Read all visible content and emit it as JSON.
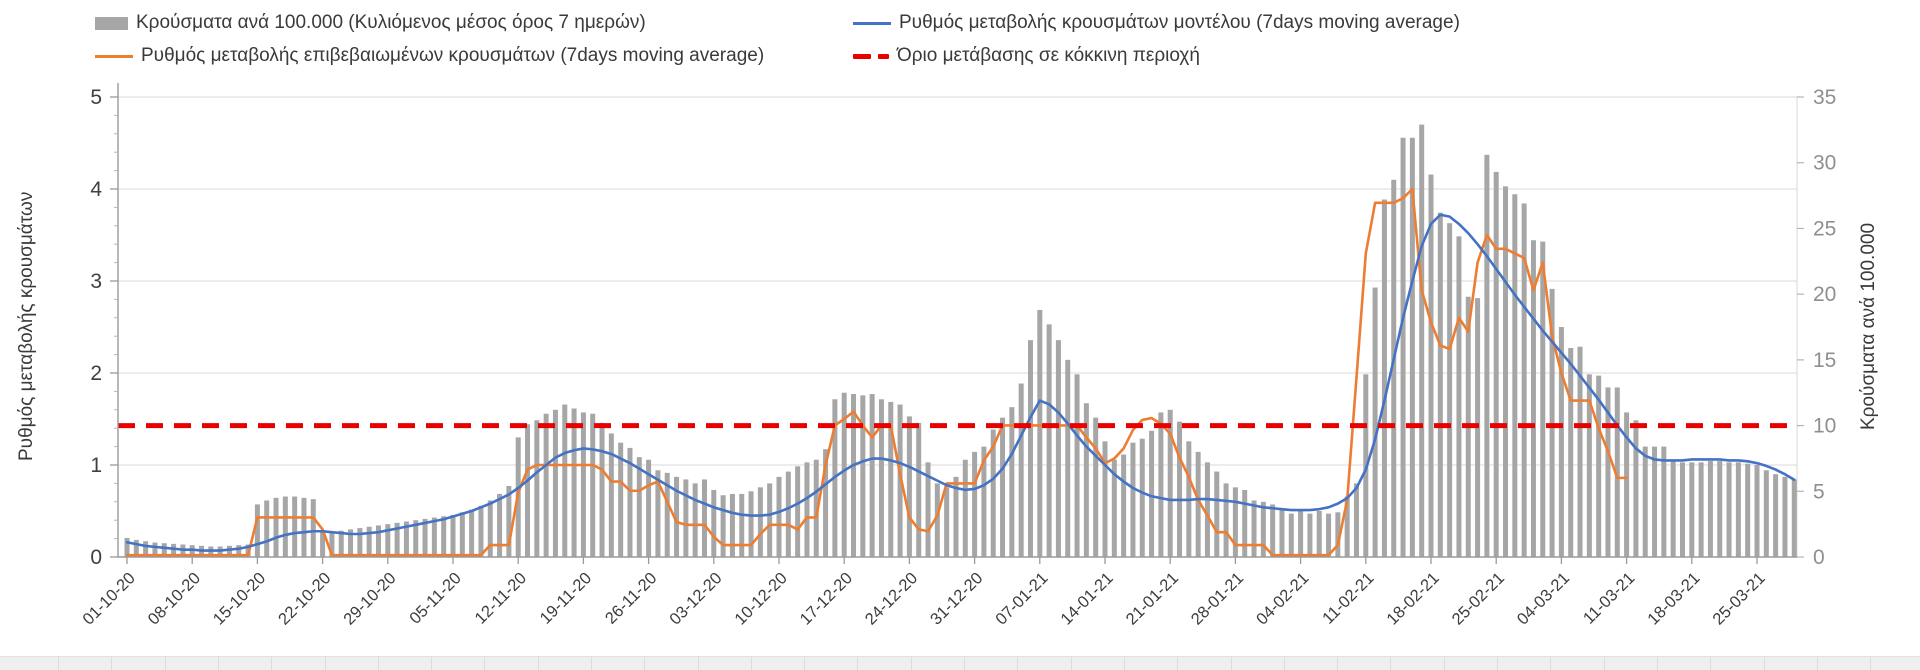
{
  "legend": {
    "items": [
      {
        "id": "cases-bars",
        "label": "Κρούσματα ανά 100.000 (Κυλιόμενος μέσος όρος 7 ημερών)",
        "swatch": "bar",
        "color": "#a6a6a6"
      },
      {
        "id": "confirmed-rate",
        "label": "Ρυθμός μεταβολής επιβεβαιωμένων κρουσμάτων (7days moving average)",
        "swatch": "line",
        "color": "#ed7d31"
      },
      {
        "id": "model-rate",
        "label": "Ρυθμός μεταβολής κρουσμάτων μοντέλου (7days moving average)",
        "swatch": "line",
        "color": "#4472c4"
      },
      {
        "id": "red-threshold",
        "label": "Όριο μετάβασης σε κόκκινη περιοχή",
        "swatch": "dash",
        "color": "#e80000"
      }
    ]
  },
  "chart_data": {
    "type": "bar+line combo, dual y-axis, daily data with weekly x ticks",
    "left_axis": {
      "label": "Ρυθμός μεταβολής κρουσμάτων",
      "min": 0,
      "max": 5,
      "ticks": [
        0,
        1,
        2,
        3,
        4,
        5
      ],
      "minor_tick_step": 0.2
    },
    "right_axis": {
      "label": "Κρούσματα ανά 100.000",
      "min": 0,
      "max": 35,
      "ticks": [
        0,
        5,
        10,
        15,
        20,
        25,
        30,
        35
      ]
    },
    "x_start_date": "01-10-20",
    "x_tick_labels": [
      "01-10-20",
      "08-10-20",
      "15-10-20",
      "22-10-20",
      "29-10-20",
      "05-11-20",
      "12-11-20",
      "19-11-20",
      "26-11-20",
      "03-12-20",
      "10-12-20",
      "17-12-20",
      "24-12-20",
      "31-12-20",
      "07-01-21",
      "14-01-21",
      "21-01-21",
      "28-01-21",
      "04-02-21",
      "11-02-21",
      "18-02-21",
      "25-02-21",
      "04-03-21",
      "11-03-21",
      "18-03-21",
      "25-03-21"
    ],
    "threshold": {
      "name": "Όριο μετάβασης σε κόκκινη περιοχή",
      "axis": "right",
      "value": 10,
      "color": "#e80000",
      "style": "dashed"
    },
    "grid": "horizontal gridlines at left-axis integers",
    "legend_position": "top, two columns",
    "series": [
      {
        "name": "Κρούσματα ανά 100.000 (Κυλιόμενος μέσος όρος 7 ημερών)",
        "type": "bar",
        "axis": "right",
        "color": "#a6a6a6",
        "values": [
          1.45,
          1.3,
          1.2,
          1.1,
          1.05,
          1.0,
          0.95,
          0.9,
          0.85,
          0.8,
          0.8,
          0.85,
          0.9,
          0.95,
          4.0,
          4.3,
          4.5,
          4.6,
          4.6,
          4.5,
          4.4,
          1.9,
          1.95,
          2.0,
          2.1,
          2.2,
          2.3,
          2.4,
          2.5,
          2.6,
          2.7,
          2.8,
          2.9,
          3.0,
          3.1,
          3.2,
          3.4,
          3.6,
          3.9,
          4.3,
          4.8,
          5.4,
          9.1,
          10.1,
          10.4,
          10.9,
          11.2,
          11.6,
          11.3,
          11.0,
          10.9,
          10.2,
          9.4,
          8.7,
          8.3,
          7.6,
          7.4,
          6.6,
          6.4,
          6.1,
          5.9,
          5.6,
          5.9,
          5.1,
          4.7,
          4.8,
          4.8,
          5.0,
          5.3,
          5.6,
          6.1,
          6.5,
          6.9,
          7.2,
          7.4,
          8.2,
          12.0,
          12.5,
          12.4,
          12.3,
          12.4,
          12.0,
          11.8,
          11.6,
          10.7,
          10.2,
          7.2,
          5.6,
          5.3,
          6.1,
          7.4,
          8.0,
          8.4,
          9.7,
          10.6,
          11.4,
          13.2,
          16.5,
          18.8,
          17.7,
          16.5,
          15.0,
          13.9,
          11.7,
          10.6,
          8.8,
          7.4,
          7.8,
          8.7,
          9.0,
          9.6,
          11.0,
          11.2,
          10.3,
          8.8,
          8.0,
          7.2,
          6.5,
          5.6,
          5.3,
          5.1,
          4.3,
          4.2,
          4.0,
          3.6,
          3.3,
          3.6,
          3.3,
          3.5,
          3.3,
          3.4,
          4.6,
          5.6,
          13.9,
          20.5,
          27.2,
          28.7,
          31.9,
          31.9,
          32.9,
          29.1,
          26.2,
          25.4,
          24.4,
          19.8,
          19.7,
          30.6,
          29.3,
          28.2,
          27.6,
          26.9,
          24.1,
          24.0,
          20.4,
          17.5,
          15.9,
          16.0,
          13.9,
          13.8,
          12.9,
          12.9,
          11.0,
          10.4,
          8.4,
          8.4,
          8.4,
          7.3,
          7.2,
          7.2,
          7.2,
          7.3,
          7.3,
          7.2,
          7.2,
          7.1,
          7.0,
          6.6,
          6.3,
          6.1,
          5.9
        ]
      },
      {
        "name": "Ρυθμός μεταβολής επιβεβαιωμένων κρουσμάτων (7days moving average)",
        "type": "line",
        "axis": "left",
        "color": "#ed7d31",
        "values": [
          0.02,
          0.02,
          0.02,
          0.02,
          0.02,
          0.02,
          0.02,
          0.02,
          0.02,
          0.02,
          0.02,
          0.02,
          0.02,
          0.02,
          0.43,
          0.43,
          0.43,
          0.43,
          0.43,
          0.43,
          0.43,
          0.3,
          0.02,
          0.02,
          0.02,
          0.02,
          0.02,
          0.02,
          0.02,
          0.02,
          0.02,
          0.02,
          0.02,
          0.02,
          0.02,
          0.02,
          0.02,
          0.02,
          0.02,
          0.13,
          0.13,
          0.13,
          0.7,
          0.95,
          1.0,
          1.0,
          1.0,
          1.0,
          1.0,
          1.0,
          1.0,
          0.95,
          0.82,
          0.82,
          0.72,
          0.72,
          0.78,
          0.82,
          0.6,
          0.38,
          0.35,
          0.35,
          0.35,
          0.22,
          0.13,
          0.13,
          0.13,
          0.13,
          0.25,
          0.35,
          0.35,
          0.35,
          0.3,
          0.43,
          0.43,
          1.0,
          1.43,
          1.5,
          1.58,
          1.43,
          1.3,
          1.43,
          1.43,
          0.9,
          0.43,
          0.3,
          0.28,
          0.45,
          0.8,
          0.8,
          0.8,
          0.8,
          1.05,
          1.2,
          1.43,
          1.43,
          1.43,
          1.43,
          1.43,
          1.43,
          1.43,
          1.43,
          1.43,
          1.3,
          1.18,
          1.02,
          1.07,
          1.18,
          1.38,
          1.49,
          1.51,
          1.45,
          1.34,
          1.08,
          0.87,
          0.62,
          0.45,
          0.27,
          0.27,
          0.13,
          0.13,
          0.13,
          0.13,
          0.02,
          0.02,
          0.02,
          0.02,
          0.02,
          0.02,
          0.02,
          0.13,
          0.62,
          1.95,
          3.3,
          3.85,
          3.85,
          3.85,
          3.9,
          4.0,
          2.9,
          2.55,
          2.3,
          2.26,
          2.6,
          2.45,
          3.2,
          3.5,
          3.35,
          3.35,
          3.3,
          3.25,
          2.9,
          3.2,
          2.4,
          2.0,
          1.7,
          1.7,
          1.7,
          1.4,
          1.15,
          0.86,
          0.86,
          null,
          null,
          null,
          null,
          null,
          null,
          null,
          null,
          null,
          null,
          null,
          null,
          null,
          null,
          null,
          null,
          null,
          null
        ]
      },
      {
        "name": "Ρυθμός μεταβολής κρουσμάτων μοντέλου (7days moving average)",
        "type": "line",
        "axis": "left",
        "color": "#4472c4",
        "values": [
          0.16,
          0.14,
          0.12,
          0.11,
          0.1,
          0.09,
          0.08,
          0.08,
          0.07,
          0.07,
          0.07,
          0.08,
          0.09,
          0.11,
          0.14,
          0.17,
          0.21,
          0.24,
          0.26,
          0.27,
          0.28,
          0.28,
          0.27,
          0.26,
          0.25,
          0.25,
          0.26,
          0.27,
          0.29,
          0.31,
          0.33,
          0.35,
          0.37,
          0.39,
          0.41,
          0.44,
          0.47,
          0.5,
          0.54,
          0.58,
          0.63,
          0.68,
          0.75,
          0.83,
          0.92,
          1.0,
          1.08,
          1.13,
          1.16,
          1.18,
          1.17,
          1.15,
          1.12,
          1.07,
          1.02,
          0.96,
          0.9,
          0.84,
          0.78,
          0.72,
          0.67,
          0.62,
          0.58,
          0.54,
          0.51,
          0.48,
          0.46,
          0.45,
          0.45,
          0.46,
          0.49,
          0.53,
          0.58,
          0.64,
          0.71,
          0.79,
          0.87,
          0.94,
          1.0,
          1.04,
          1.07,
          1.07,
          1.05,
          1.02,
          0.98,
          0.93,
          0.88,
          0.83,
          0.78,
          0.75,
          0.73,
          0.74,
          0.78,
          0.85,
          0.96,
          1.12,
          1.32,
          1.52,
          1.7,
          1.66,
          1.57,
          1.45,
          1.32,
          1.2,
          1.1,
          1.0,
          0.9,
          0.82,
          0.75,
          0.7,
          0.66,
          0.64,
          0.62,
          0.62,
          0.62,
          0.63,
          0.63,
          0.62,
          0.61,
          0.6,
          0.58,
          0.56,
          0.54,
          0.53,
          0.52,
          0.51,
          0.51,
          0.51,
          0.52,
          0.54,
          0.58,
          0.64,
          0.75,
          0.95,
          1.28,
          1.7,
          2.15,
          2.6,
          3.0,
          3.38,
          3.62,
          3.72,
          3.7,
          3.62,
          3.52,
          3.4,
          3.27,
          3.13,
          2.99,
          2.85,
          2.72,
          2.59,
          2.46,
          2.34,
          2.22,
          2.1,
          1.97,
          1.84,
          1.71,
          1.57,
          1.43,
          1.3,
          1.18,
          1.1,
          1.06,
          1.05,
          1.05,
          1.05,
          1.06,
          1.06,
          1.06,
          1.06,
          1.05,
          1.05,
          1.04,
          1.02,
          0.99,
          0.95,
          0.9,
          0.84
        ]
      }
    ]
  }
}
